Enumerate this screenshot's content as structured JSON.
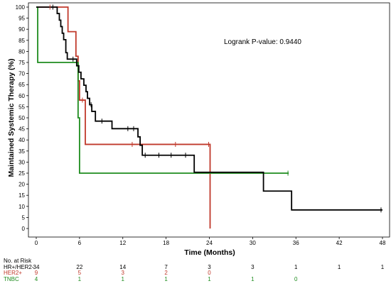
{
  "chart_data": {
    "type": "line",
    "subtype": "kaplan-meier",
    "title": "",
    "xlabel": "Time (Months)",
    "ylabel": "Maintained Systemic Therapy (%)",
    "xlim": [
      0,
      48
    ],
    "ylim": [
      0,
      100
    ],
    "x_ticks": [
      0,
      6,
      12,
      18,
      24,
      30,
      36,
      42,
      48
    ],
    "y_ticks": [
      0,
      5,
      10,
      15,
      20,
      25,
      30,
      35,
      40,
      45,
      50,
      55,
      60,
      65,
      70,
      75,
      80,
      85,
      90,
      95,
      100
    ],
    "grid": false,
    "legend": "none",
    "annotation": "Logrank P-value: 0.9440",
    "series": [
      {
        "label": "HR+/HER2-",
        "color": "#000000",
        "steps": [
          [
            0,
            100
          ],
          [
            2.6,
            100
          ],
          [
            2.9,
            97.1
          ],
          [
            3.2,
            94.1
          ],
          [
            3.4,
            91.2
          ],
          [
            3.6,
            88.2
          ],
          [
            3.8,
            85.3
          ],
          [
            4.1,
            79.4
          ],
          [
            4.3,
            76.5
          ],
          [
            5.4,
            76.5
          ],
          [
            5.6,
            73.5
          ],
          [
            5.9,
            70.6
          ],
          [
            6.2,
            67.6
          ],
          [
            6.6,
            64.7
          ],
          [
            6.9,
            61.8
          ],
          [
            7.1,
            58.8
          ],
          [
            7.4,
            55.9
          ],
          [
            7.7,
            52.9
          ],
          [
            8.2,
            48.5
          ],
          [
            10.3,
            48.5
          ],
          [
            10.5,
            45.1
          ],
          [
            13.9,
            45.1
          ],
          [
            14.1,
            41.4
          ],
          [
            14.4,
            37.6
          ],
          [
            14.7,
            33.1
          ],
          [
            21.7,
            33.1
          ],
          [
            21.9,
            25.4
          ],
          [
            31.3,
            25.4
          ],
          [
            31.5,
            16.9
          ],
          [
            35.2,
            16.9
          ],
          [
            35.4,
            8.4
          ],
          [
            48,
            8.4
          ]
        ],
        "censor": [
          [
            2.3,
            100
          ],
          [
            5.1,
            76.5
          ],
          [
            7.6,
            55.9
          ],
          [
            9.1,
            48.5
          ],
          [
            12.7,
            45.1
          ],
          [
            13.5,
            45.1
          ],
          [
            15.1,
            33.1
          ],
          [
            17.0,
            33.1
          ],
          [
            18.7,
            33.1
          ],
          [
            20.7,
            33.1
          ],
          [
            47.8,
            8.4
          ]
        ]
      },
      {
        "label": "HER2+",
        "color": "#c0392b",
        "steps": [
          [
            0,
            100
          ],
          [
            4.2,
            100
          ],
          [
            4.4,
            88.9
          ],
          [
            5.3,
            88.9
          ],
          [
            5.5,
            77.8
          ],
          [
            5.8,
            66.7
          ],
          [
            6.0,
            58.0
          ],
          [
            6.6,
            58.0
          ],
          [
            6.8,
            38.0
          ],
          [
            23.9,
            38.0
          ],
          [
            24.1,
            0
          ]
        ],
        "censor": [
          [
            1.9,
            100
          ],
          [
            6.4,
            58.0
          ],
          [
            13.3,
            38.0
          ],
          [
            19.3,
            38.0
          ],
          [
            23.9,
            38.0
          ]
        ]
      },
      {
        "label": "TNBC",
        "color": "#1e8c1e",
        "steps": [
          [
            0,
            100
          ],
          [
            0.2,
            75
          ],
          [
            5.6,
            75
          ],
          [
            5.8,
            50
          ],
          [
            6.0,
            25
          ],
          [
            35,
            25
          ]
        ],
        "censor": [
          [
            34.9,
            25
          ]
        ]
      }
    ],
    "risk_table": {
      "header": "No. at Risk",
      "rows": [
        {
          "label": "HR+/HER2-",
          "color": "#000000",
          "values": [
            "34",
            "22",
            "14",
            "7",
            "3",
            "3",
            "1",
            "1",
            "1"
          ]
        },
        {
          "label": "HER2+",
          "color": "#c0392b",
          "values": [
            "9",
            "5",
            "3",
            "2",
            "0",
            "",
            "",
            "",
            ""
          ]
        },
        {
          "label": "TNBC",
          "color": "#1e8c1e",
          "values": [
            "4",
            "1",
            "1",
            "1",
            "1",
            "1",
            "0",
            "",
            ""
          ]
        }
      ]
    }
  }
}
